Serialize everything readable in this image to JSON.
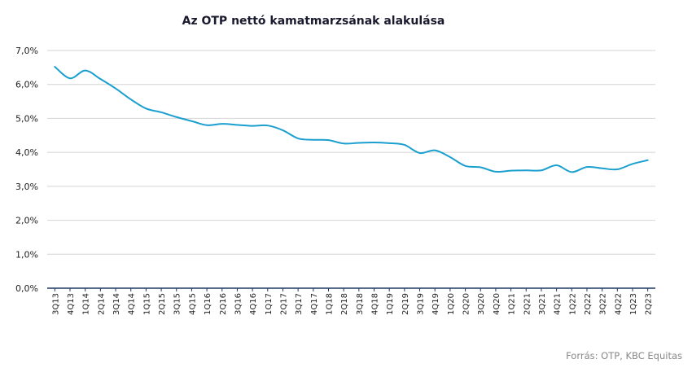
{
  "chart_data": {
    "type": "line",
    "title": "Az OTP nettó kamatmarzsának alakulása",
    "xlabel": "",
    "ylabel": "",
    "ylim": [
      0,
      7
    ],
    "yticks": [
      "0,0%",
      "1,0%",
      "2,0%",
      "3,0%",
      "4,0%",
      "5,0%",
      "6,0%",
      "7,0%"
    ],
    "grid": true,
    "line_color": "#1a9fcf",
    "categories": [
      "3Q13",
      "4Q13",
      "1Q14",
      "2Q14",
      "3Q14",
      "4Q14",
      "1Q15",
      "2Q15",
      "3Q15",
      "4Q15",
      "1Q16",
      "2Q16",
      "3Q16",
      "4Q16",
      "1Q17",
      "2Q17",
      "3Q17",
      "4Q17",
      "1Q18",
      "2Q18",
      "3Q18",
      "4Q18",
      "1Q19",
      "2Q19",
      "3Q19",
      "4Q19",
      "1Q20",
      "2Q20",
      "3Q20",
      "4Q20",
      "1Q21",
      "2Q21",
      "3Q21",
      "4Q21",
      "1Q22",
      "2Q22",
      "3Q22",
      "4Q22",
      "1Q23",
      "2Q23"
    ],
    "series": [
      {
        "values": [
          6.52,
          6.18,
          6.41,
          6.16,
          5.88,
          5.56,
          5.29,
          5.18,
          5.04,
          4.92,
          4.8,
          4.84,
          4.81,
          4.78,
          4.79,
          4.65,
          4.41,
          4.37,
          4.36,
          4.26,
          4.28,
          4.29,
          4.27,
          4.22,
          3.98,
          4.06,
          3.86,
          3.6,
          3.56,
          3.43,
          3.46,
          3.47,
          3.47,
          3.62,
          3.42,
          3.57,
          3.53,
          3.5,
          3.66,
          3.77
        ]
      }
    ]
  },
  "source": "Forrás: OTP, KBC Equitas"
}
